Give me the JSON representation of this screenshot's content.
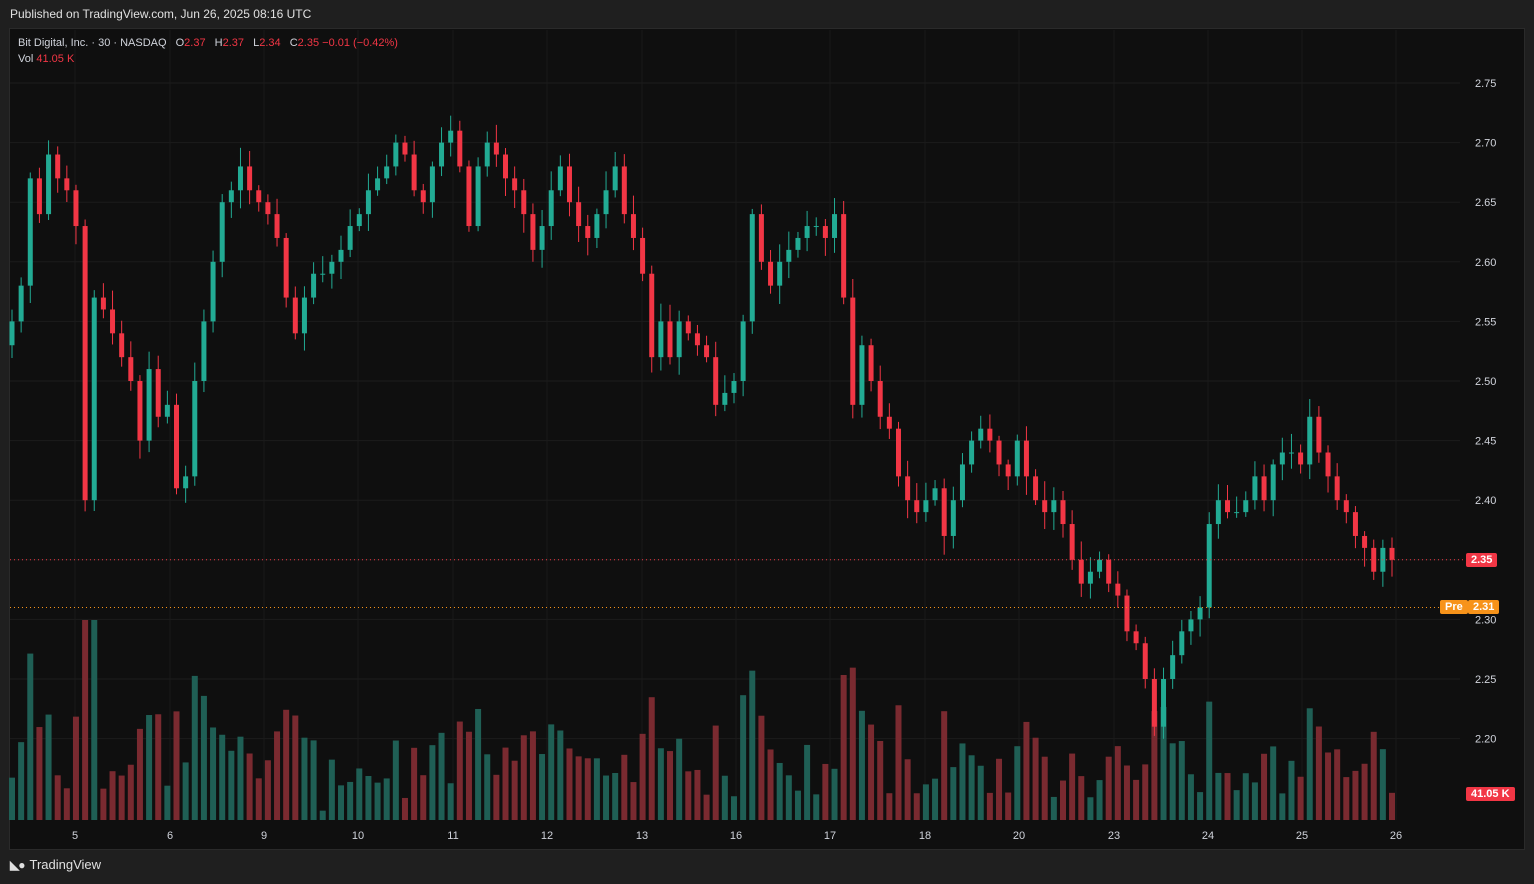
{
  "header": {
    "published": "Published on TradingView.com, Jun 26, 2025 08:16 UTC"
  },
  "legend": {
    "symbol": "Bit Digital, Inc. · 30 · NASDAQ",
    "o_label": "O",
    "o": "2.37",
    "h_label": "H",
    "h": "2.37",
    "l_label": "L",
    "l": "2.34",
    "c_label": "C",
    "c": "2.35",
    "change": "−0.01 (−0.42%)",
    "vol_label": "Vol",
    "vol": "41.05 K"
  },
  "price_tags": {
    "last": "2.35",
    "pre_label": "Pre",
    "pre": "2.31",
    "volume": "41.05 K"
  },
  "footer": {
    "brand": "TradingView"
  },
  "colors": {
    "up": "#22ab94",
    "down": "#f23645",
    "pre": "#f7931a",
    "bg": "#0f0f0f"
  },
  "chart_data": {
    "type": "candlestick",
    "title": "Bit Digital, Inc. · 30 · NASDAQ",
    "y_axis": {
      "ticks": [
        2.75,
        2.7,
        2.65,
        2.6,
        2.55,
        2.5,
        2.45,
        2.4,
        2.35,
        2.3,
        2.25,
        2.2
      ],
      "range": [
        2.15,
        2.78
      ]
    },
    "x_axis": {
      "ticks": [
        "5",
        "6",
        "9",
        "10",
        "11",
        "12",
        "13",
        "16",
        "17",
        "18",
        "20",
        "23",
        "24",
        "25",
        "26"
      ]
    },
    "grid": true,
    "last_price": 2.35,
    "premarket_price": 2.31,
    "closes": [
      2.55,
      2.58,
      2.67,
      2.64,
      2.69,
      2.67,
      2.66,
      2.63,
      2.4,
      2.57,
      2.56,
      2.54,
      2.52,
      2.5,
      2.45,
      2.51,
      2.47,
      2.48,
      2.41,
      2.42,
      2.5,
      2.55,
      2.6,
      2.65,
      2.66,
      2.68,
      2.66,
      2.65,
      2.64,
      2.62,
      2.57,
      2.54,
      2.57,
      2.59,
      2.59,
      2.6,
      2.61,
      2.63,
      2.64,
      2.66,
      2.67,
      2.68,
      2.7,
      2.69,
      2.66,
      2.65,
      2.68,
      2.7,
      2.71,
      2.68,
      2.63,
      2.68,
      2.7,
      2.69,
      2.67,
      2.66,
      2.64,
      2.61,
      2.63,
      2.66,
      2.68,
      2.65,
      2.63,
      2.62,
      2.64,
      2.66,
      2.68,
      2.64,
      2.62,
      2.59,
      2.52,
      2.55,
      2.52,
      2.55,
      2.54,
      2.53,
      2.52,
      2.48,
      2.49,
      2.5,
      2.55,
      2.64,
      2.6,
      2.58,
      2.6,
      2.61,
      2.62,
      2.63,
      2.63,
      2.62,
      2.64,
      2.57,
      2.48,
      2.53,
      2.5,
      2.47,
      2.46,
      2.42,
      2.4,
      2.39,
      2.4,
      2.41,
      2.37,
      2.4,
      2.43,
      2.45,
      2.46,
      2.45,
      2.43,
      2.42,
      2.45,
      2.42,
      2.4,
      2.39,
      2.4,
      2.38,
      2.35,
      2.33,
      2.34,
      2.35,
      2.33,
      2.32,
      2.29,
      2.28,
      2.25,
      2.21,
      2.25,
      2.27,
      2.29,
      2.3,
      2.31,
      2.38,
      2.4,
      2.39,
      2.39,
      2.4,
      2.42,
      2.4,
      2.43,
      2.44,
      2.44,
      2.43,
      2.47,
      2.44,
      2.42,
      2.4,
      2.39,
      2.37,
      2.36,
      2.34,
      2.36,
      2.35
    ],
    "volume_series": {
      "name": "Vol",
      "last_value": "41.05 K"
    }
  }
}
